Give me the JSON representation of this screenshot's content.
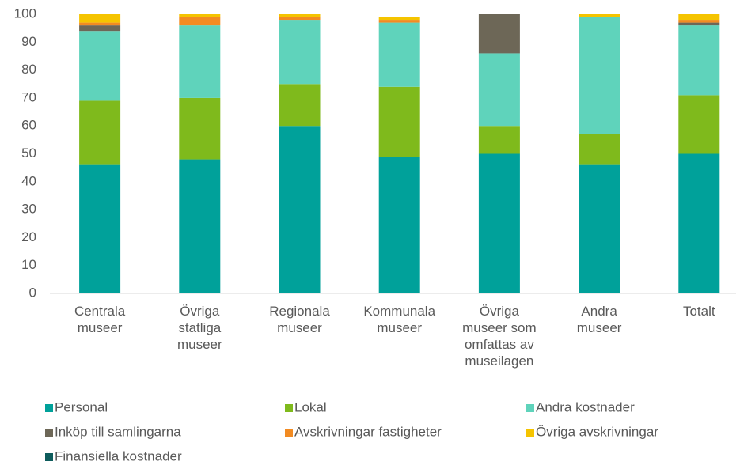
{
  "chart_data": {
    "type": "stacked_bar",
    "categories": [
      "Centrala museer",
      "Övriga statliga museer",
      "Regionala museer",
      "Kommunala museer",
      "Övriga museer som omfattas av museilagen",
      "Andra museer",
      "Totalt"
    ],
    "series": [
      {
        "name": "Personal",
        "color": "#00a19a",
        "values": [
          46,
          48,
          60,
          49,
          50,
          46,
          50
        ]
      },
      {
        "name": "Lokal",
        "color": "#7fba1c",
        "values": [
          23,
          22,
          15,
          25,
          10,
          11,
          21
        ]
      },
      {
        "name": "Andra kostnader",
        "color": "#5fd3bb",
        "values": [
          25,
          26,
          23,
          23,
          26,
          42,
          25
        ]
      },
      {
        "name": "Inköp till samlingarna",
        "color": "#6d6757",
        "values": [
          2,
          0,
          0,
          0,
          14,
          0,
          1
        ]
      },
      {
        "name": "Avskrivningar fastigheter",
        "color": "#f28b22",
        "values": [
          1,
          3,
          1,
          1,
          0,
          0,
          1
        ]
      },
      {
        "name": "Övriga avskrivningar",
        "color": "#f5c400",
        "values": [
          3,
          1,
          1,
          1,
          0,
          1,
          2
        ]
      },
      {
        "name": "Finansiella kostnader",
        "color": "#0e5c5c",
        "values": [
          0,
          0,
          0,
          0,
          0,
          0,
          0
        ]
      }
    ],
    "ylim": [
      0,
      100
    ],
    "yticks": [
      0,
      10,
      20,
      30,
      40,
      50,
      60,
      70,
      80,
      90,
      100
    ],
    "grid": false,
    "legend": "bottom"
  }
}
